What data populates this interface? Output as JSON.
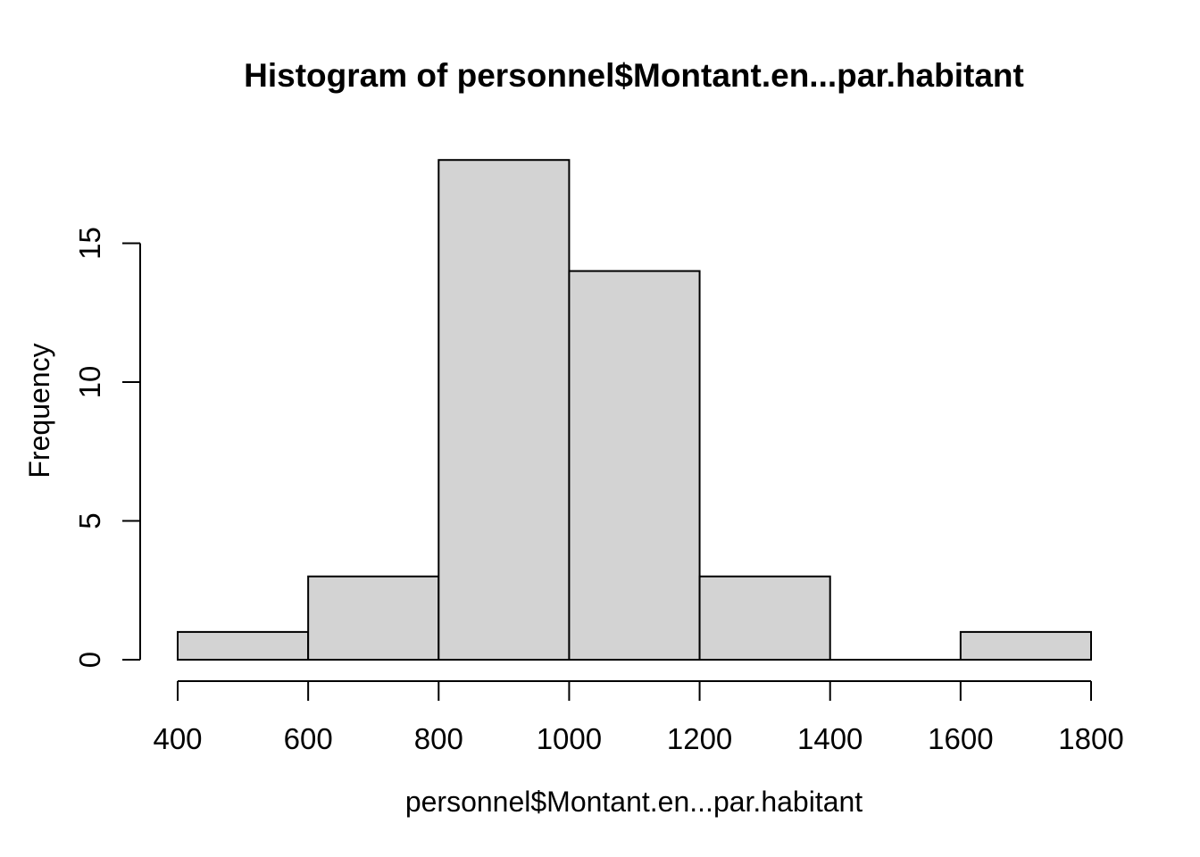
{
  "chart_data": {
    "type": "bar",
    "subtype": "histogram",
    "title": "Histogram of personnel$Montant.en...par.habitant",
    "xlabel": "personnel$Montant.en...par.habitant",
    "ylabel": "Frequency",
    "bin_edges": [
      400,
      600,
      800,
      1000,
      1200,
      1400,
      1600,
      1800
    ],
    "counts": [
      1,
      3,
      18,
      14,
      3,
      0,
      1
    ],
    "x_ticks": [
      400,
      600,
      800,
      1000,
      1200,
      1400,
      1600,
      1800
    ],
    "y_ticks": [
      0,
      5,
      10,
      15
    ],
    "xlim": [
      400,
      1800
    ],
    "ylim": [
      0,
      18
    ],
    "grid": false,
    "legend": false,
    "colors": {
      "bar_fill": "#D3D3D3",
      "bar_border": "#000000",
      "axis": "#000000",
      "text": "#000000",
      "background": "#FFFFFF"
    }
  }
}
